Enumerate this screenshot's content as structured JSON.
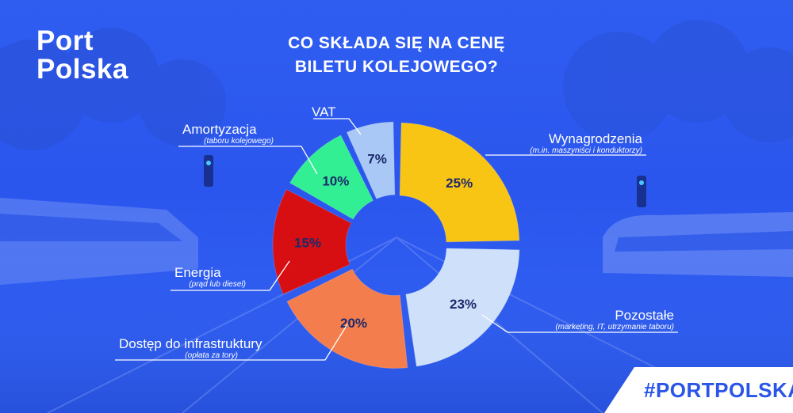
{
  "brand": {
    "line1": "Port",
    "line2": "Polska"
  },
  "title": {
    "line1": "CO SKŁADA SIĘ NA CENĘ",
    "line2": "BILETU KOLEJOWEGO?"
  },
  "hashtag": "#PORTPOLSKA",
  "colors": {
    "background": "#2f5df0",
    "text": "#ffffff",
    "value_text": "#1c2a6b"
  },
  "chart_data": {
    "type": "pie",
    "unit": "%",
    "slices": [
      {
        "name": "Wynagrodzenia",
        "note": "(m.in. maszyniści i konduktorzy)",
        "value": 25,
        "label": "25%",
        "color": "#f9c515"
      },
      {
        "name": "Pozostałe",
        "note": "(marketing, IT, utrzymanie taboru)",
        "value": 23,
        "label": "23%",
        "color": "#cfe0fa"
      },
      {
        "name": "Dostęp do infrastruktury",
        "note": "(opłata za tory)",
        "value": 20,
        "label": "20%",
        "color": "#f47d4d"
      },
      {
        "name": "Energia",
        "note": "(prąd lub diesel)",
        "value": 15,
        "label": "15%",
        "color": "#d80f12"
      },
      {
        "name": "Amortyzacja",
        "note": "(taboru kolejowego)",
        "value": 10,
        "label": "10%",
        "color": "#33ef94"
      },
      {
        "name": "VAT",
        "note": "",
        "value": 7,
        "label": "7%",
        "color": "#a9c8f5"
      }
    ]
  }
}
